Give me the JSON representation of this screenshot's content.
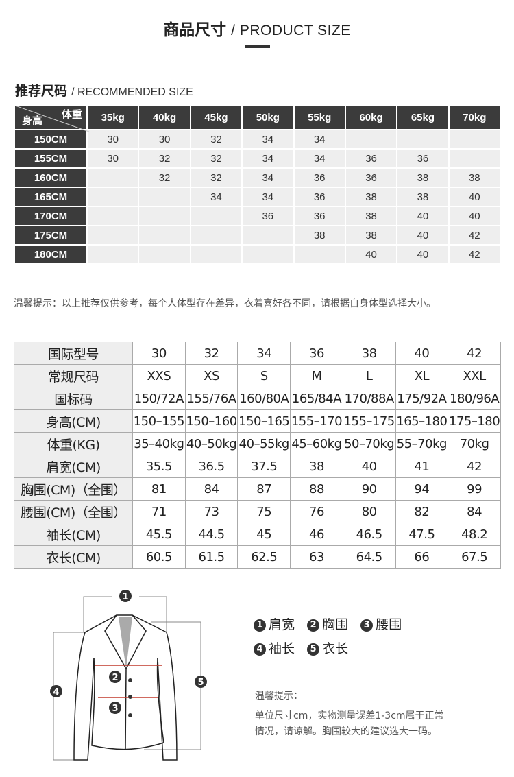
{
  "header": {
    "title_cn": "商品尺寸",
    "title_en": "/ PRODUCT SIZE"
  },
  "recommended": {
    "title_cn": "推荐尺码",
    "title_en": "/ RECOMMENDED SIZE",
    "corner_weight": "体重",
    "corner_height": "身高",
    "weights": [
      "35kg",
      "40kg",
      "45kg",
      "50kg",
      "55kg",
      "60kg",
      "65kg",
      "70kg"
    ],
    "rows": [
      {
        "height": "150CM",
        "sizes": [
          "30",
          "30",
          "32",
          "34",
          "34",
          "",
          "",
          ""
        ]
      },
      {
        "height": "155CM",
        "sizes": [
          "30",
          "32",
          "32",
          "34",
          "34",
          "36",
          "36",
          ""
        ]
      },
      {
        "height": "160CM",
        "sizes": [
          "",
          "32",
          "32",
          "34",
          "36",
          "36",
          "38",
          "38"
        ]
      },
      {
        "height": "165CM",
        "sizes": [
          "",
          "",
          "34",
          "34",
          "36",
          "38",
          "38",
          "40"
        ]
      },
      {
        "height": "170CM",
        "sizes": [
          "",
          "",
          "",
          "36",
          "36",
          "38",
          "40",
          "40"
        ]
      },
      {
        "height": "175CM",
        "sizes": [
          "",
          "",
          "",
          "",
          "38",
          "38",
          "40",
          "42"
        ]
      },
      {
        "height": "180CM",
        "sizes": [
          "",
          "",
          "",
          "",
          "",
          "40",
          "40",
          "42"
        ]
      }
    ],
    "note": "温馨提示：以上推荐仅供参考，每个人体型存在差异，衣着喜好各不同，请根据自身体型选择大小。"
  },
  "size_table": {
    "rows": [
      {
        "label": "国际型号",
        "values": [
          "30",
          "32",
          "34",
          "36",
          "38",
          "40",
          "42"
        ]
      },
      {
        "label": "常规尺码",
        "values": [
          "XXS",
          "XS",
          "S",
          "M",
          "L",
          "XL",
          "XXL"
        ]
      },
      {
        "label": "国标码",
        "values": [
          "150/72A",
          "155/76A",
          "160/80A",
          "165/84A",
          "170/88A",
          "175/92A",
          "180/96A"
        ]
      },
      {
        "label": "身高(CM)",
        "values": [
          "150–155",
          "150–160",
          "150–165",
          "155–170",
          "155–175",
          "165–180",
          "175–180"
        ]
      },
      {
        "label": "体重(KG)",
        "values": [
          "35–40kg",
          "40–50kg",
          "40–55kg",
          "45–60kg",
          "50–70kg",
          "55–70kg",
          "70kg"
        ]
      },
      {
        "label": "肩宽(CM)",
        "values": [
          "35.5",
          "36.5",
          "37.5",
          "38",
          "40",
          "41",
          "42"
        ]
      },
      {
        "label": "胸围(CM)（全围）",
        "values": [
          "81",
          "84",
          "87",
          "88",
          "90",
          "94",
          "99"
        ]
      },
      {
        "label": "腰围(CM)（全围）",
        "values": [
          "71",
          "73",
          "75",
          "76",
          "80",
          "82",
          "84"
        ]
      },
      {
        "label": "袖长(CM)",
        "values": [
          "45.5",
          "44.5",
          "45",
          "46",
          "46.5",
          "47.5",
          "48.2"
        ]
      },
      {
        "label": "衣长(CM)",
        "values": [
          "60.5",
          "61.5",
          "62.5",
          "63",
          "64.5",
          "66",
          "67.5"
        ]
      }
    ]
  },
  "diagram": {
    "markers": [
      "1",
      "2",
      "3",
      "4",
      "5"
    ],
    "legend": [
      {
        "n": "1",
        "label": "肩宽"
      },
      {
        "n": "2",
        "label": "胸围"
      },
      {
        "n": "3",
        "label": "腰围"
      },
      {
        "n": "4",
        "label": "袖长"
      },
      {
        "n": "5",
        "label": "衣长"
      }
    ],
    "tip_title": "温馨提示：",
    "tip_line1": "单位尺寸cm，实物测量误差1-3cm属于正常",
    "tip_line2": "情况，请谅解。胸围较大的建议选大一码。",
    "measure_line_color": "#c0392b"
  }
}
